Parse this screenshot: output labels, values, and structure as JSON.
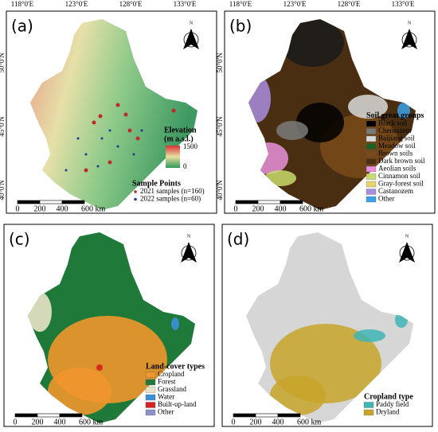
{
  "graticule": {
    "longitudes": [
      "118°0'E",
      "123°0'E",
      "128°0'E",
      "133°0'E"
    ],
    "latitudes": [
      "50°0'N",
      "45°0'N",
      "40°0'N"
    ]
  },
  "north_label": "N",
  "scale_bar": [
    "0",
    "200",
    "400",
    "600 km"
  ],
  "panels": [
    {
      "label": "(a)",
      "elevation_legend": {
        "title": "Elevation",
        "subtitle": "(m a.s.l.)",
        "max": 1500,
        "min": 0
      },
      "legend": {
        "title": "Sample Points",
        "items": [
          {
            "label": "2021 samples (n=160)",
            "color": "#c0282d"
          },
          {
            "label": "2022 samples (n=60)",
            "color": "#1f3a93"
          }
        ]
      }
    },
    {
      "label": "(b)",
      "legend": {
        "title": "Soil great groups",
        "items": [
          {
            "label": "Black soil",
            "color": "#000000"
          },
          {
            "label": "Chernozem",
            "color": "#7a7a7a"
          },
          {
            "label": "Baijiang soil",
            "color": "#d9d9d9"
          },
          {
            "label": "Meadow soil",
            "color": "#1d5e22"
          },
          {
            "label": "Brown soils",
            "color": "#7a4a1a"
          },
          {
            "label": "Dark brown soil",
            "color": "#4a2e12"
          },
          {
            "label": "Aeolian soils",
            "color": "#e98fd9"
          },
          {
            "label": "Cinnamon soil",
            "color": "#c9db6c"
          },
          {
            "label": "Gray-forest soil",
            "color": "#e8d36f"
          },
          {
            "label": "Castanozem",
            "color": "#a98de0"
          },
          {
            "label": "Other",
            "color": "#3aa0e8"
          }
        ]
      }
    },
    {
      "label": "(c)",
      "legend": {
        "title": "Land-cover types",
        "items": [
          {
            "label": "Cropland",
            "color": "#f0962d"
          },
          {
            "label": "Forest",
            "color": "#1f7a3a"
          },
          {
            "label": "Grassland",
            "color": "#e8e4c8"
          },
          {
            "label": "Water",
            "color": "#3a8fd8"
          },
          {
            "label": "Built-up-land",
            "color": "#d92020"
          },
          {
            "label": "Other",
            "color": "#8c8fc8"
          }
        ]
      }
    },
    {
      "label": "(d)",
      "legend": {
        "title": "Cropland type",
        "items": [
          {
            "label": "Paddy field",
            "color": "#3fb5b5"
          },
          {
            "label": "Dryland",
            "color": "#c8a52a"
          }
        ]
      }
    }
  ]
}
